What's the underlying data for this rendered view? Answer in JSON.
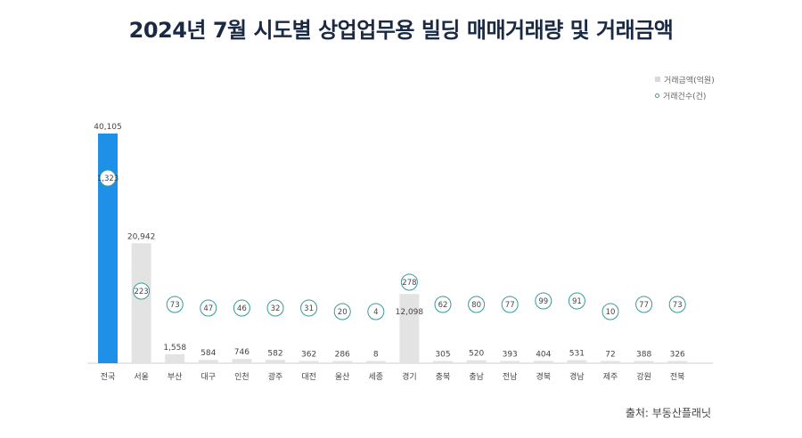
{
  "chart_data": {
    "type": "bar",
    "title": "2024년 7월 시도별 상업업무용 빌딩 매매거래량 및 거래금액",
    "categories": [
      "전국",
      "서울",
      "부산",
      "대구",
      "인천",
      "광주",
      "대전",
      "울산",
      "세종",
      "경기",
      "충북",
      "충남",
      "전남",
      "경북",
      "경남",
      "제주",
      "강원",
      "전북"
    ],
    "series": [
      {
        "name": "거래금액(억원)",
        "type": "bar",
        "values": [
          40105,
          20942,
          1558,
          584,
          746,
          582,
          362,
          286,
          8,
          12098,
          305,
          520,
          393,
          404,
          531,
          72,
          388,
          326
        ],
        "labels": [
          "40,105",
          "20,942",
          "1,558",
          "584",
          "746",
          "582",
          "362",
          "286",
          "8",
          "12,098",
          "305",
          "520",
          "393",
          "404",
          "531",
          "72",
          "388",
          "326"
        ]
      },
      {
        "name": "거래건수(건)",
        "type": "marker",
        "values": [
          1323,
          223,
          73,
          47,
          46,
          32,
          31,
          20,
          4,
          278,
          62,
          80,
          77,
          99,
          91,
          10,
          77,
          73
        ],
        "labels": [
          "1,323",
          "223",
          "73",
          "47",
          "46",
          "32",
          "31",
          "20",
          "4",
          "278",
          "62",
          "80",
          "77",
          "99",
          "91",
          "10",
          "77",
          "73"
        ]
      }
    ],
    "ylim": [
      0,
      42000
    ],
    "grid": false,
    "legend_position": "top-right",
    "colors": {
      "highlight": "#1e90e8",
      "bar": "#e3e3e3",
      "marker": "#3a9a9a",
      "text": "#444444"
    }
  },
  "source": "출처: 부동산플래닛"
}
